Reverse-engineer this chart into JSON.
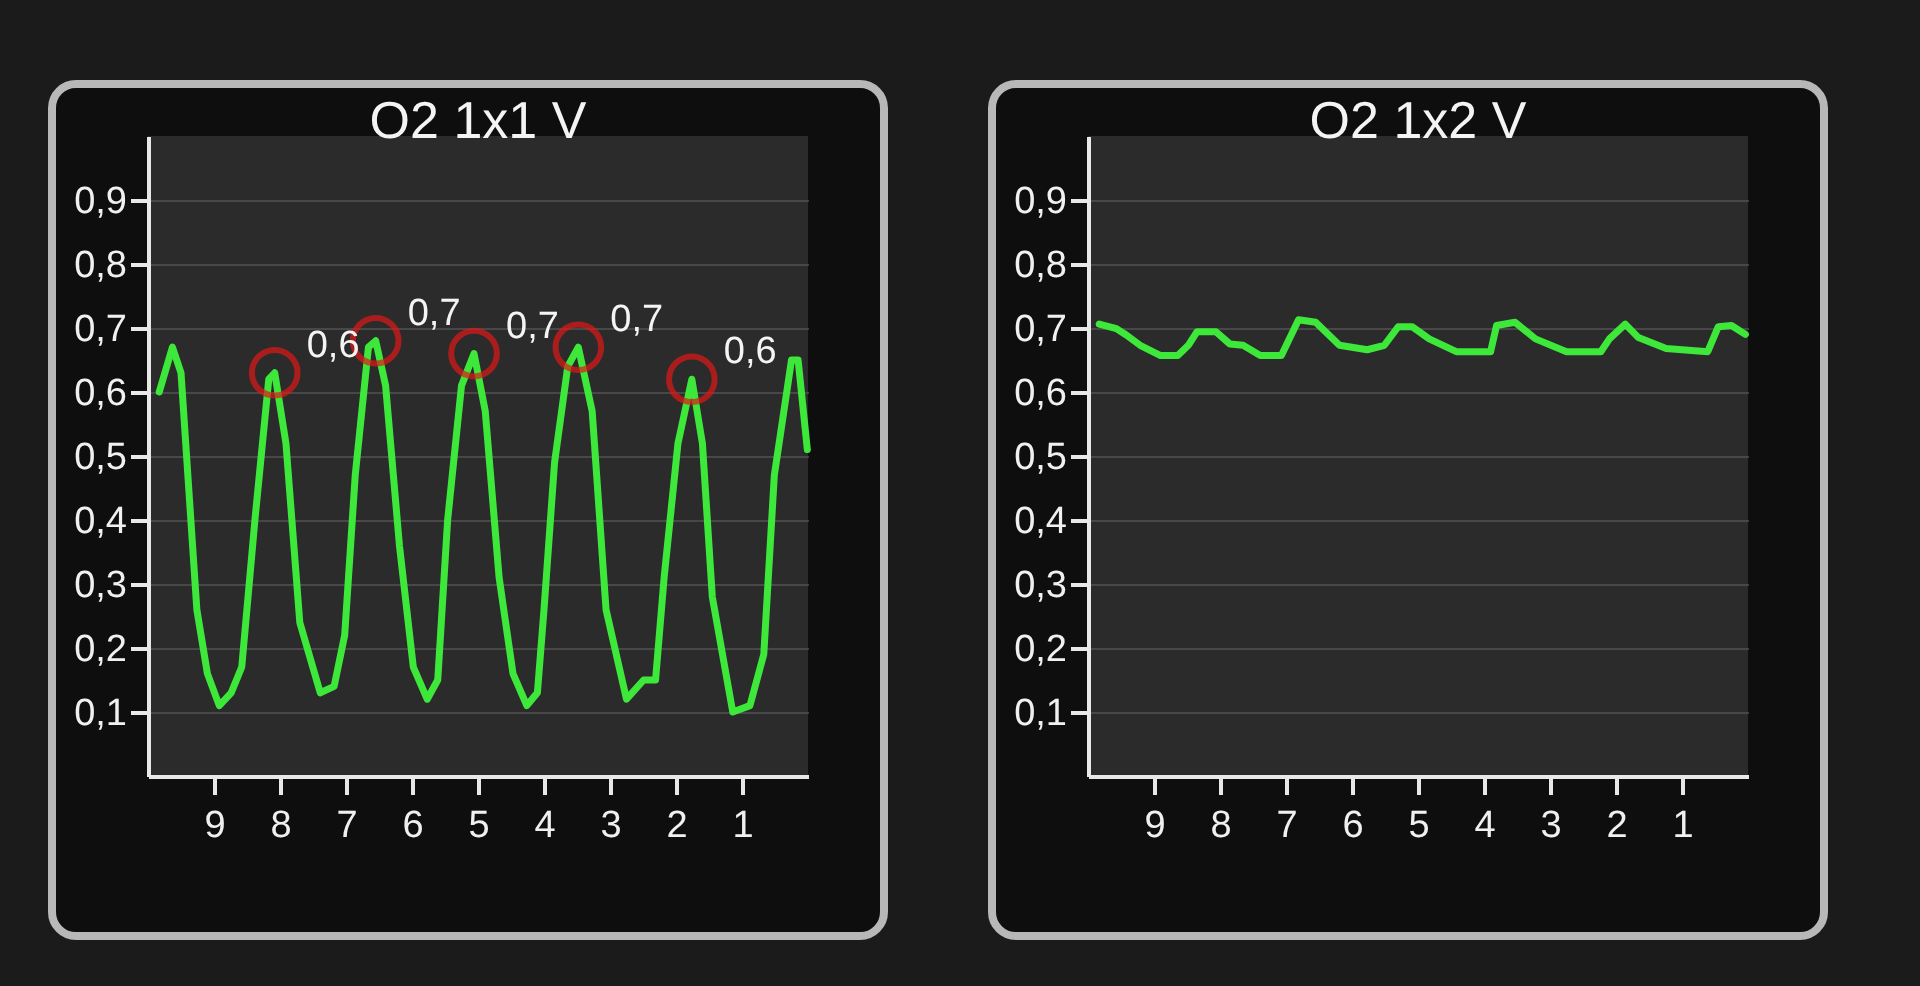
{
  "chart_data": [
    {
      "type": "line",
      "title": "O2 1x1  V",
      "xlim": [
        10,
        0
      ],
      "xticks": [
        9,
        8,
        7,
        6,
        5,
        4,
        3,
        2,
        1
      ],
      "ylim": [
        0,
        1
      ],
      "yticks": [
        {
          "value": 0.1,
          "label": "0,1"
        },
        {
          "value": 0.2,
          "label": "0,2"
        },
        {
          "value": 0.3,
          "label": "0,3"
        },
        {
          "value": 0.4,
          "label": "0,4"
        },
        {
          "value": 0.5,
          "label": "0,5"
        },
        {
          "value": 0.6,
          "label": "0,6"
        },
        {
          "value": 0.7,
          "label": "0,7"
        },
        {
          "value": 0.8,
          "label": "0,8"
        },
        {
          "value": 0.9,
          "label": "0,9"
        }
      ],
      "grid": "y",
      "series": [
        {
          "color": "#3ee83a",
          "x": [
            9.83,
            9.63,
            9.5,
            9.26,
            9.1,
            8.92,
            8.74,
            8.58,
            8.38,
            8.17,
            8.08,
            7.91,
            7.7,
            7.39,
            7.18,
            7.02,
            6.86,
            6.66,
            6.55,
            6.4,
            6.19,
            5.98,
            5.77,
            5.61,
            5.46,
            5.25,
            5.06,
            4.89,
            4.68,
            4.47,
            4.26,
            4.1,
            4.0,
            3.84,
            3.64,
            3.48,
            3.27,
            3.06,
            2.75,
            2.49,
            2.31,
            2.18,
            1.97,
            1.76,
            1.6,
            1.45,
            1.14,
            0.88,
            0.67,
            0.51,
            0.25,
            0.15,
            0.01
          ],
          "values": [
            0.6,
            0.67,
            0.63,
            0.26,
            0.16,
            0.11,
            0.13,
            0.17,
            0.4,
            0.62,
            0.63,
            0.52,
            0.24,
            0.13,
            0.14,
            0.22,
            0.47,
            0.67,
            0.68,
            0.61,
            0.36,
            0.17,
            0.12,
            0.15,
            0.4,
            0.61,
            0.66,
            0.57,
            0.31,
            0.16,
            0.11,
            0.13,
            0.26,
            0.49,
            0.64,
            0.67,
            0.57,
            0.26,
            0.12,
            0.15,
            0.15,
            0.31,
            0.52,
            0.62,
            0.52,
            0.28,
            0.1,
            0.11,
            0.19,
            0.47,
            0.65,
            0.65,
            0.51
          ]
        }
      ],
      "annotations": [
        {
          "text": "0,6",
          "x": 8.08,
          "y": 0.63
        },
        {
          "text": "0,7",
          "x": 6.55,
          "y": 0.68
        },
        {
          "text": "0,7",
          "x": 5.06,
          "y": 0.66
        },
        {
          "text": "0,7",
          "x": 3.48,
          "y": 0.67
        },
        {
          "text": "0,6",
          "x": 1.76,
          "y": 0.62
        }
      ]
    },
    {
      "type": "line",
      "title": "O2 1x2  V",
      "xlim": [
        10,
        0
      ],
      "xticks": [
        9,
        8,
        7,
        6,
        5,
        4,
        3,
        2,
        1
      ],
      "ylim": [
        0,
        1
      ],
      "yticks": [
        {
          "value": 0.1,
          "label": "0,1"
        },
        {
          "value": 0.2,
          "label": "0,2"
        },
        {
          "value": 0.3,
          "label": "0,3"
        },
        {
          "value": 0.4,
          "label": "0,4"
        },
        {
          "value": 0.5,
          "label": "0,5"
        },
        {
          "value": 0.6,
          "label": "0,6"
        },
        {
          "value": 0.7,
          "label": "0,7"
        },
        {
          "value": 0.8,
          "label": "0,8"
        },
        {
          "value": 0.9,
          "label": "0,9"
        }
      ],
      "grid": "y",
      "series": [
        {
          "color": "#3ee83a",
          "x": [
            9.83,
            9.57,
            9.42,
            9.21,
            8.9,
            8.64,
            8.48,
            8.35,
            8.06,
            7.85,
            7.65,
            7.39,
            7.07,
            6.81,
            6.55,
            6.19,
            5.77,
            5.51,
            5.3,
            5.09,
            4.83,
            4.42,
            3.9,
            3.81,
            3.53,
            3.22,
            2.75,
            2.23,
            2.1,
            1.86,
            1.66,
            1.24,
            0.61,
            0.45,
            0.25,
            0.04
          ],
          "values": [
            0.706,
            0.699,
            0.689,
            0.673,
            0.657,
            0.657,
            0.673,
            0.694,
            0.694,
            0.675,
            0.673,
            0.657,
            0.657,
            0.713,
            0.709,
            0.673,
            0.666,
            0.673,
            0.702,
            0.702,
            0.683,
            0.663,
            0.663,
            0.704,
            0.709,
            0.683,
            0.663,
            0.663,
            0.683,
            0.706,
            0.685,
            0.668,
            0.663,
            0.702,
            0.704,
            0.69
          ]
        }
      ]
    }
  ]
}
